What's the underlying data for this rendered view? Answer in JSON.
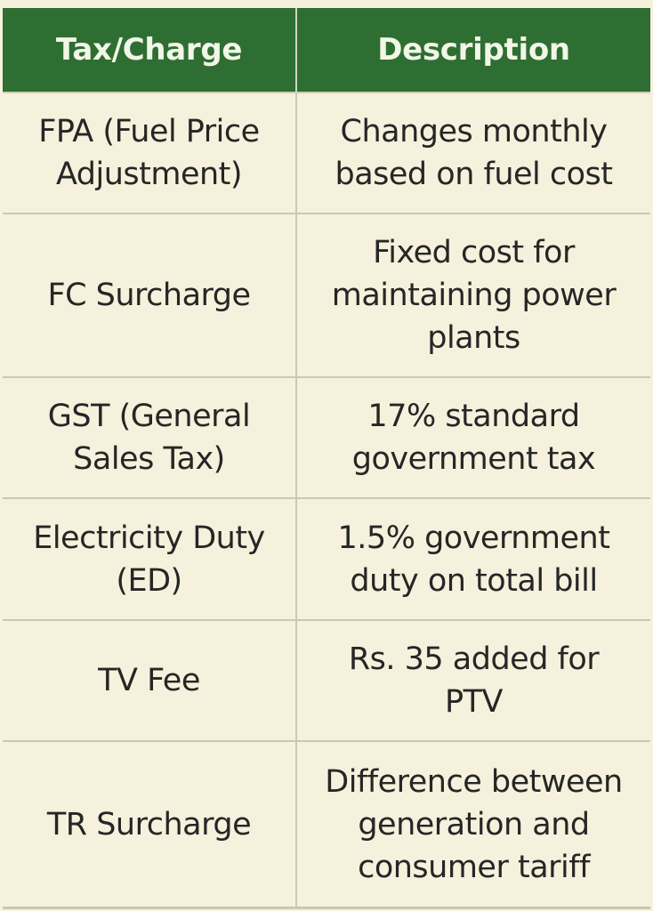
{
  "header": {
    "col1": "Tax/Charge",
    "col2": "Description"
  },
  "rows": [
    {
      "tax": "FPA (Fuel Price\nAdjustment)",
      "description": "Changes monthly\nbased on fuel cost"
    },
    {
      "tax": "FC Surcharge",
      "description": "Fixed cost for\nmaintaining power\nplants"
    },
    {
      "tax": "GST (General\nSales Tax)",
      "description": "17% standard\ngovernment tax"
    },
    {
      "tax": "Electricity Duty\n(ED)",
      "description": "1.5% government\nduty on total bill"
    },
    {
      "tax": "TV Fee",
      "description": "Rs. 35 added for\nPTV"
    },
    {
      "tax": "TR Surcharge",
      "description": "Difference between\ngeneration and\nconsumer tariff"
    }
  ],
  "colors": {
    "header_bg": "#2f6e33",
    "header_text": "#f1f6e6",
    "cell_bg": "#f6f1dc",
    "grid": "#c9c9b0",
    "text": "#262626"
  }
}
